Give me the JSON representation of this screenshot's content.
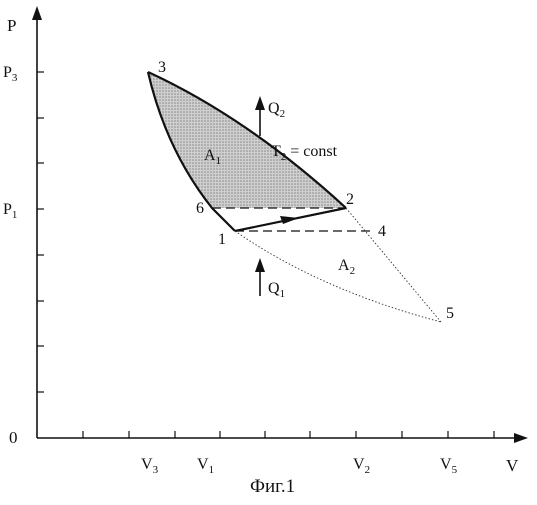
{
  "figure": {
    "caption": "Фиг.1",
    "axes": {
      "y_label": "P",
      "x_label": "V",
      "origin_label": "0"
    },
    "y_ticks": [
      {
        "main": "P",
        "sub": "3"
      },
      {
        "main": "P",
        "sub": "1"
      }
    ],
    "x_ticks": [
      {
        "main": "V",
        "sub": "3"
      },
      {
        "main": "V",
        "sub": "1"
      },
      {
        "main": "V",
        "sub": "2"
      },
      {
        "main": "V",
        "sub": "5"
      }
    ],
    "points": [
      "1",
      "2",
      "3",
      "4",
      "5",
      "6"
    ],
    "heat_labels": [
      {
        "main": "Q",
        "sub": "2"
      },
      {
        "main": "Q",
        "sub": "1"
      }
    ],
    "areas": [
      {
        "main": "A",
        "sub": "1"
      },
      {
        "main": "A",
        "sub": "2"
      }
    ],
    "isotherm": {
      "main": "T",
      "sub": "2",
      "rest": " = const"
    },
    "colors": {
      "line": "#111111",
      "shade": "#bdbdbd"
    }
  }
}
